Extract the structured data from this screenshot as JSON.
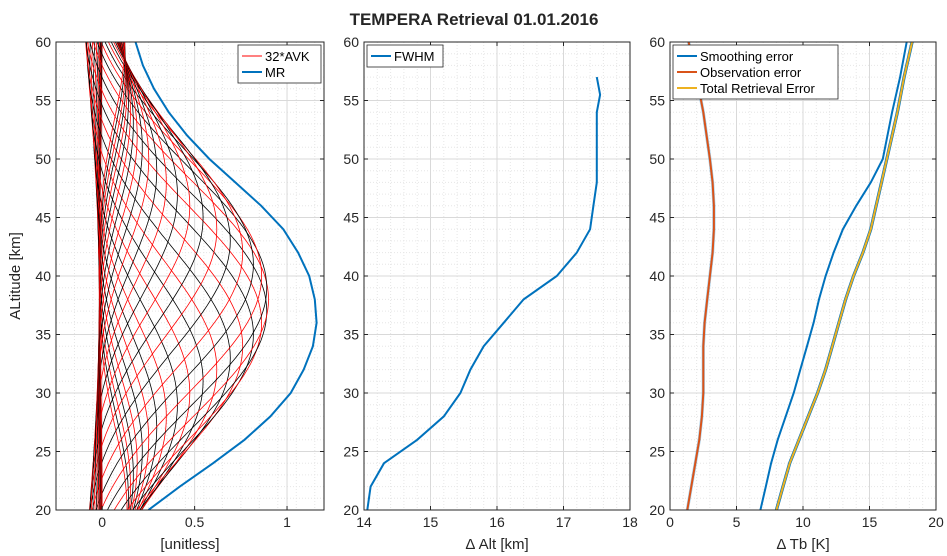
{
  "figure": {
    "title": "TEMPERA Retrieval 01.01.2016"
  },
  "colors": {
    "avk_red": "#ff0000",
    "avk_black": "#000000",
    "mr_blue": "#0072bd",
    "fwhm_blue": "#0072bd",
    "smoothing": "#0072bd",
    "observation": "#d95319",
    "total": "#edb120",
    "grid": "#e6e6e6",
    "axis": "#262626"
  },
  "chart_data": [
    {
      "type": "line",
      "ylabel": "ALtitude [km]",
      "xlabel": "[unitless]",
      "xlim": [
        -0.25,
        1.2
      ],
      "ylim": [
        20,
        60
      ],
      "xticks": [
        0,
        0.5,
        1
      ],
      "xtick_labels": [
        "0",
        "0.5",
        "1"
      ],
      "yticks": [
        20,
        25,
        30,
        35,
        40,
        45,
        50,
        55,
        60
      ],
      "ytick_labels": [
        "20",
        "25",
        "30",
        "35",
        "40",
        "45",
        "50",
        "55",
        "60"
      ],
      "grid": true,
      "legend": {
        "position": "top-right",
        "entries": [
          "32*AVK",
          "MR"
        ]
      },
      "avk_count": 41,
      "series": [
        {
          "name": "MR",
          "y": [
            20,
            22,
            24,
            26,
            28,
            30,
            32,
            34,
            36,
            38,
            40,
            42,
            44,
            46,
            48,
            50,
            52,
            54,
            56,
            58,
            60
          ],
          "x": [
            0.25,
            0.42,
            0.6,
            0.77,
            0.91,
            1.02,
            1.09,
            1.14,
            1.16,
            1.15,
            1.12,
            1.06,
            0.98,
            0.86,
            0.72,
            0.58,
            0.46,
            0.36,
            0.28,
            0.22,
            0.18
          ]
        }
      ]
    },
    {
      "type": "line",
      "xlabel": "Δ Alt [km]",
      "xlim": [
        14,
        18
      ],
      "ylim": [
        20,
        60
      ],
      "xticks": [
        14,
        15,
        16,
        17,
        18
      ],
      "xtick_labels": [
        "14",
        "15",
        "16",
        "17",
        "18"
      ],
      "yticks": [
        20,
        25,
        30,
        35,
        40,
        45,
        50,
        55,
        60
      ],
      "ytick_labels": [
        "20",
        "25",
        "30",
        "35",
        "40",
        "45",
        "50",
        "55",
        "60"
      ],
      "grid": true,
      "legend": {
        "position": "top-left",
        "entries": [
          "FWHM"
        ]
      },
      "series": [
        {
          "name": "FWHM",
          "x": [
            14.05,
            14.1,
            14.3,
            14.8,
            15.2,
            15.45,
            15.6,
            15.8,
            16.1,
            16.4,
            16.9,
            17.2,
            17.4,
            17.45,
            17.5,
            17.5,
            17.5,
            17.5,
            17.55,
            17.5
          ],
          "y": [
            20,
            22,
            24,
            26,
            28,
            30,
            32,
            34,
            36,
            38,
            40,
            42,
            44,
            46,
            48,
            50,
            52,
            54,
            55.5,
            57
          ]
        }
      ]
    },
    {
      "type": "line",
      "xlabel": "Δ Tb [K]",
      "xlim": [
        0,
        20
      ],
      "ylim": [
        20,
        60
      ],
      "xticks": [
        0,
        5,
        10,
        15,
        20
      ],
      "xtick_labels": [
        "0",
        "5",
        "10",
        "15",
        "20"
      ],
      "yticks": [
        20,
        25,
        30,
        35,
        40,
        45,
        50,
        55,
        60
      ],
      "ytick_labels": [
        "20",
        "25",
        "30",
        "35",
        "40",
        "45",
        "50",
        "55",
        "60"
      ],
      "grid": true,
      "legend": {
        "position": "top-left",
        "entries": [
          "Smoothing error",
          "Observation error",
          "Total Retrieval Error"
        ]
      },
      "series": [
        {
          "name": "Smoothing error",
          "x": [
            6.8,
            7.2,
            7.6,
            8.1,
            8.7,
            9.3,
            9.8,
            10.3,
            10.8,
            11.2,
            11.7,
            12.3,
            13.0,
            14.0,
            15.1,
            16.0,
            16.7,
            17.3,
            17.8
          ],
          "y": [
            20,
            22,
            24,
            26,
            28,
            30,
            32,
            34,
            36,
            38,
            40,
            42,
            44,
            46,
            48,
            50,
            54,
            57,
            60
          ]
        },
        {
          "name": "Observation error",
          "x": [
            1.3,
            1.6,
            1.9,
            2.2,
            2.4,
            2.5,
            2.5,
            2.5,
            2.6,
            2.8,
            3.0,
            3.2,
            3.3,
            3.3,
            3.2,
            3.0,
            2.5,
            2.0,
            1.4
          ],
          "y": [
            20,
            22,
            24,
            26,
            28,
            30,
            32,
            34,
            36,
            38,
            40,
            42,
            44,
            46,
            48,
            50,
            54,
            57,
            60
          ]
        },
        {
          "name": "Total Retrieval Error",
          "x": [
            8.0,
            8.5,
            9.0,
            9.7,
            10.4,
            11.1,
            11.7,
            12.2,
            12.7,
            13.2,
            13.8,
            14.5,
            15.1,
            15.5,
            15.9,
            16.3,
            17.1,
            17.6,
            18.2
          ],
          "y": [
            20,
            22,
            24,
            26,
            28,
            30,
            32,
            34,
            36,
            38,
            40,
            42,
            44,
            46,
            48,
            50,
            54,
            57,
            60
          ]
        }
      ]
    }
  ]
}
